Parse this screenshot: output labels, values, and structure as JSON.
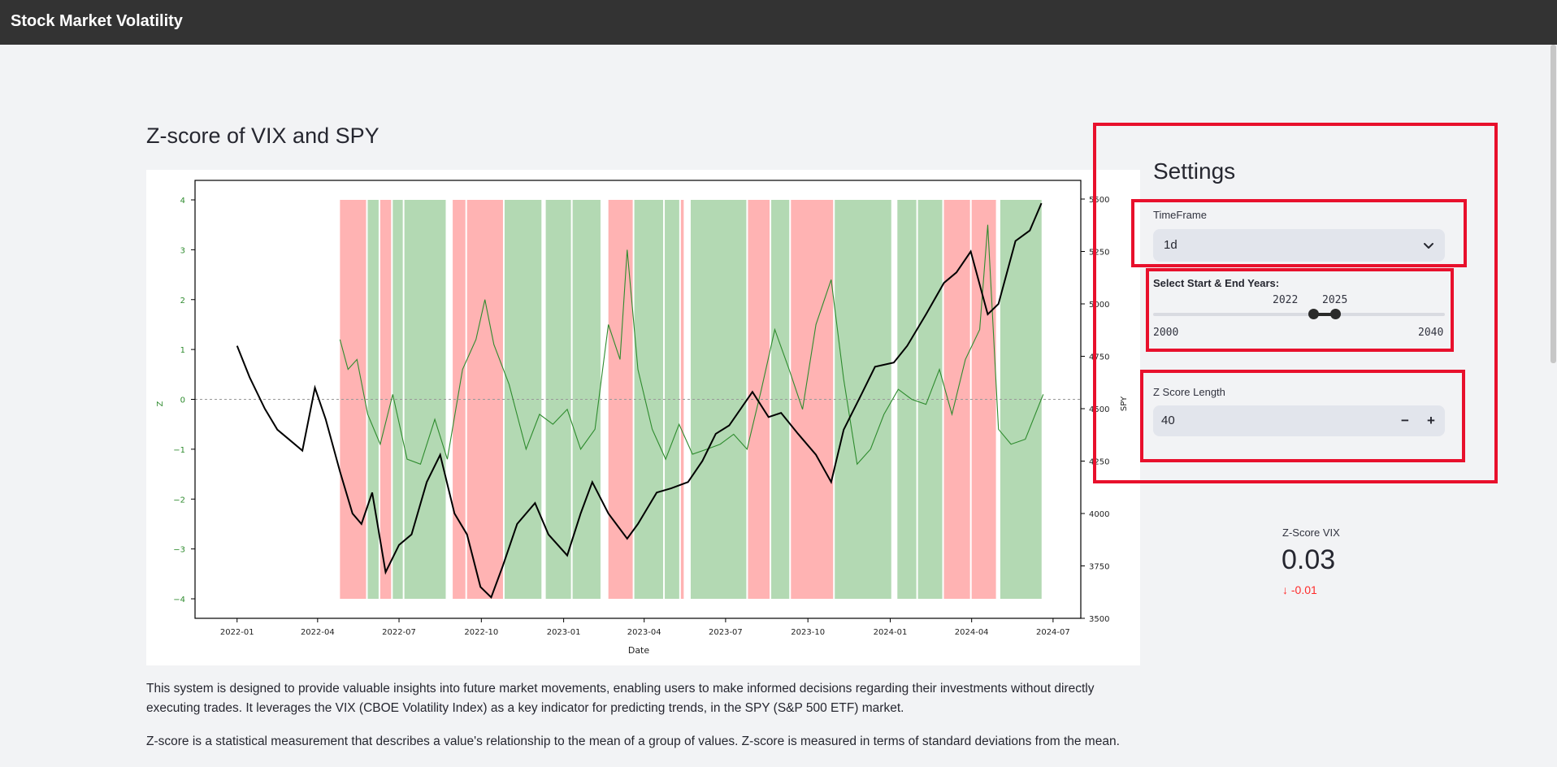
{
  "app": {
    "title": "Stock Market Volatility"
  },
  "main": {
    "title": "Z-score of VIX and SPY",
    "paragraphs": [
      "This system is designed to provide valuable insights into future market movements, enabling users to make informed decisions regarding their investments without directly executing trades. It leverages the VIX (CBOE Volatility Index) as a key indicator for predicting trends, in the SPY (S&P 500 ETF) market.",
      "Z-score is a statistical measurement that describes a value's relationship to the mean of a group of values. Z-score is measured in terms of standard deviations from the mean."
    ]
  },
  "settings": {
    "title": "Settings",
    "timeframe": {
      "label": "TimeFrame",
      "value": "1d"
    },
    "years": {
      "label": "Select Start & End Years:",
      "start": "2022",
      "end": "2025",
      "min": "2000",
      "max": "2040"
    },
    "zscore_length": {
      "label": "Z Score Length",
      "value": "40",
      "minus": "−",
      "plus": "+"
    }
  },
  "metric": {
    "label": "Z-Score VIX",
    "value": "0.03",
    "delta": "-0.01",
    "delta_arrow": "↓"
  },
  "colors": {
    "topbar": "#333333",
    "background": "#f2f3f5",
    "annotation": "#e8102c",
    "zscore_line": "#2e8b2e",
    "spy_line": "#000000",
    "green_band": "#b3d9b3",
    "red_band": "#ffb3b3",
    "delta_negative": "#ff2b2b"
  },
  "chart_data": {
    "type": "line",
    "xlabel": "Date",
    "ylabel_left": "Z",
    "ylabel_right": "SPY",
    "x_ticks": [
      "2022-01",
      "2022-04",
      "2022-07",
      "2022-10",
      "2023-01",
      "2023-04",
      "2023-07",
      "2023-10",
      "2024-01",
      "2024-04",
      "2024-07"
    ],
    "y_left_ticks": [
      4,
      3,
      2,
      1,
      0,
      -1,
      -2,
      -3,
      -4
    ],
    "y_right_ticks": [
      5500,
      5250,
      5000,
      4750,
      4500,
      4250,
      4000,
      3750,
      3500
    ],
    "ylim_left": [
      -4,
      4
    ],
    "ylim_right": [
      3500,
      5500
    ],
    "zero_line": 0,
    "regions": [
      {
        "start": "2022-04-26",
        "end": "2022-05-27",
        "signal": "sell"
      },
      {
        "start": "2022-05-27",
        "end": "2022-06-10",
        "signal": "buy"
      },
      {
        "start": "2022-06-10",
        "end": "2022-06-24",
        "signal": "sell"
      },
      {
        "start": "2022-06-24",
        "end": "2022-07-07",
        "signal": "buy"
      },
      {
        "start": "2022-07-07",
        "end": "2022-08-24",
        "signal": "buy"
      },
      {
        "start": "2022-08-30",
        "end": "2022-09-15",
        "signal": "sell"
      },
      {
        "start": "2022-09-15",
        "end": "2022-10-27",
        "signal": "sell"
      },
      {
        "start": "2022-10-27",
        "end": "2022-12-09",
        "signal": "buy"
      },
      {
        "start": "2022-12-12",
        "end": "2023-01-11",
        "signal": "buy"
      },
      {
        "start": "2023-01-11",
        "end": "2023-02-13",
        "signal": "buy"
      },
      {
        "start": "2023-02-20",
        "end": "2023-03-21",
        "signal": "sell"
      },
      {
        "start": "2023-03-21",
        "end": "2023-04-24",
        "signal": "buy"
      },
      {
        "start": "2023-04-24",
        "end": "2023-05-12",
        "signal": "buy"
      },
      {
        "start": "2023-05-12",
        "end": "2023-05-17",
        "signal": "sell"
      },
      {
        "start": "2023-05-23",
        "end": "2023-07-26",
        "signal": "buy"
      },
      {
        "start": "2023-07-26",
        "end": "2023-08-21",
        "signal": "sell"
      },
      {
        "start": "2023-08-21",
        "end": "2023-09-12",
        "signal": "buy"
      },
      {
        "start": "2023-09-12",
        "end": "2023-10-31",
        "signal": "sell"
      },
      {
        "start": "2023-10-31",
        "end": "2024-01-04",
        "signal": "buy"
      },
      {
        "start": "2024-01-09",
        "end": "2024-02-01",
        "signal": "buy"
      },
      {
        "start": "2024-02-01",
        "end": "2024-03-01",
        "signal": "buy"
      },
      {
        "start": "2024-03-01",
        "end": "2024-04-01",
        "signal": "sell"
      },
      {
        "start": "2024-04-01",
        "end": "2024-04-30",
        "signal": "sell"
      },
      {
        "start": "2024-05-03",
        "end": "2024-06-20",
        "signal": "buy"
      }
    ],
    "series": [
      {
        "name": "Z",
        "axis": "left",
        "x": [
          "2022-04-26",
          "2022-05-05",
          "2022-05-15",
          "2022-05-27",
          "2022-06-10",
          "2022-06-24",
          "2022-07-10",
          "2022-07-25",
          "2022-08-10",
          "2022-08-24",
          "2022-09-10",
          "2022-09-25",
          "2022-10-05",
          "2022-10-15",
          "2022-11-01",
          "2022-11-20",
          "2022-12-05",
          "2022-12-20",
          "2023-01-05",
          "2023-01-20",
          "2023-02-05",
          "2023-02-20",
          "2023-03-05",
          "2023-03-13",
          "2023-03-25",
          "2023-04-10",
          "2023-04-25",
          "2023-05-10",
          "2023-05-25",
          "2023-06-10",
          "2023-06-25",
          "2023-07-10",
          "2023-07-25",
          "2023-08-10",
          "2023-08-25",
          "2023-09-10",
          "2023-09-25",
          "2023-10-10",
          "2023-10-27",
          "2023-11-10",
          "2023-11-25",
          "2023-12-10",
          "2023-12-25",
          "2024-01-10",
          "2024-01-25",
          "2024-02-10",
          "2024-02-25",
          "2024-03-10",
          "2024-03-25",
          "2024-04-10",
          "2024-04-19",
          "2024-05-01",
          "2024-05-15",
          "2024-05-31",
          "2024-06-20"
        ],
        "values": [
          1.2,
          0.6,
          0.8,
          -0.3,
          -0.9,
          0.1,
          -1.2,
          -1.3,
          -0.4,
          -1.2,
          0.6,
          1.2,
          2.0,
          1.1,
          0.3,
          -1.0,
          -0.3,
          -0.5,
          -0.2,
          -1.0,
          -0.6,
          1.5,
          0.8,
          3.0,
          0.6,
          -0.6,
          -1.2,
          -0.5,
          -1.1,
          -1.0,
          -0.9,
          -0.7,
          -1.0,
          0.2,
          1.4,
          0.6,
          -0.2,
          1.5,
          2.4,
          0.4,
          -1.3,
          -1.0,
          -0.3,
          0.2,
          0.0,
          -0.1,
          0.6,
          -0.3,
          0.8,
          1.4,
          3.5,
          -0.6,
          -0.9,
          -0.8,
          0.1
        ]
      },
      {
        "name": "SPY",
        "axis": "right",
        "x": [
          "2022-01-01",
          "2022-01-15",
          "2022-02-01",
          "2022-02-15",
          "2022-03-01",
          "2022-03-15",
          "2022-03-29",
          "2022-04-10",
          "2022-04-26",
          "2022-05-10",
          "2022-05-20",
          "2022-06-01",
          "2022-06-16",
          "2022-07-01",
          "2022-07-15",
          "2022-08-01",
          "2022-08-16",
          "2022-09-01",
          "2022-09-15",
          "2022-09-30",
          "2022-10-12",
          "2022-10-25",
          "2022-11-10",
          "2022-11-30",
          "2022-12-15",
          "2023-01-05",
          "2023-01-20",
          "2023-02-02",
          "2023-02-20",
          "2023-03-13",
          "2023-03-25",
          "2023-04-15",
          "2023-05-01",
          "2023-05-20",
          "2023-06-05",
          "2023-06-20",
          "2023-07-05",
          "2023-07-31",
          "2023-08-18",
          "2023-09-01",
          "2023-09-20",
          "2023-10-10",
          "2023-10-27",
          "2023-11-10",
          "2023-11-30",
          "2023-12-15",
          "2024-01-05",
          "2024-01-20",
          "2024-02-10",
          "2024-03-01",
          "2024-03-15",
          "2024-03-31",
          "2024-04-19",
          "2024-05-01",
          "2024-05-20",
          "2024-06-05",
          "2024-06-18"
        ],
        "values": [
          4800,
          4650,
          4500,
          4400,
          4350,
          4300,
          4600,
          4450,
          4200,
          4000,
          3950,
          4100,
          3720,
          3850,
          3900,
          4150,
          4280,
          4000,
          3900,
          3650,
          3600,
          3750,
          3950,
          4050,
          3900,
          3800,
          4000,
          4150,
          4000,
          3880,
          3950,
          4100,
          4120,
          4150,
          4250,
          4380,
          4420,
          4580,
          4460,
          4480,
          4380,
          4280,
          4150,
          4400,
          4570,
          4700,
          4720,
          4800,
          4950,
          5100,
          5150,
          5250,
          4950,
          5000,
          5300,
          5350,
          5480
        ]
      }
    ]
  }
}
